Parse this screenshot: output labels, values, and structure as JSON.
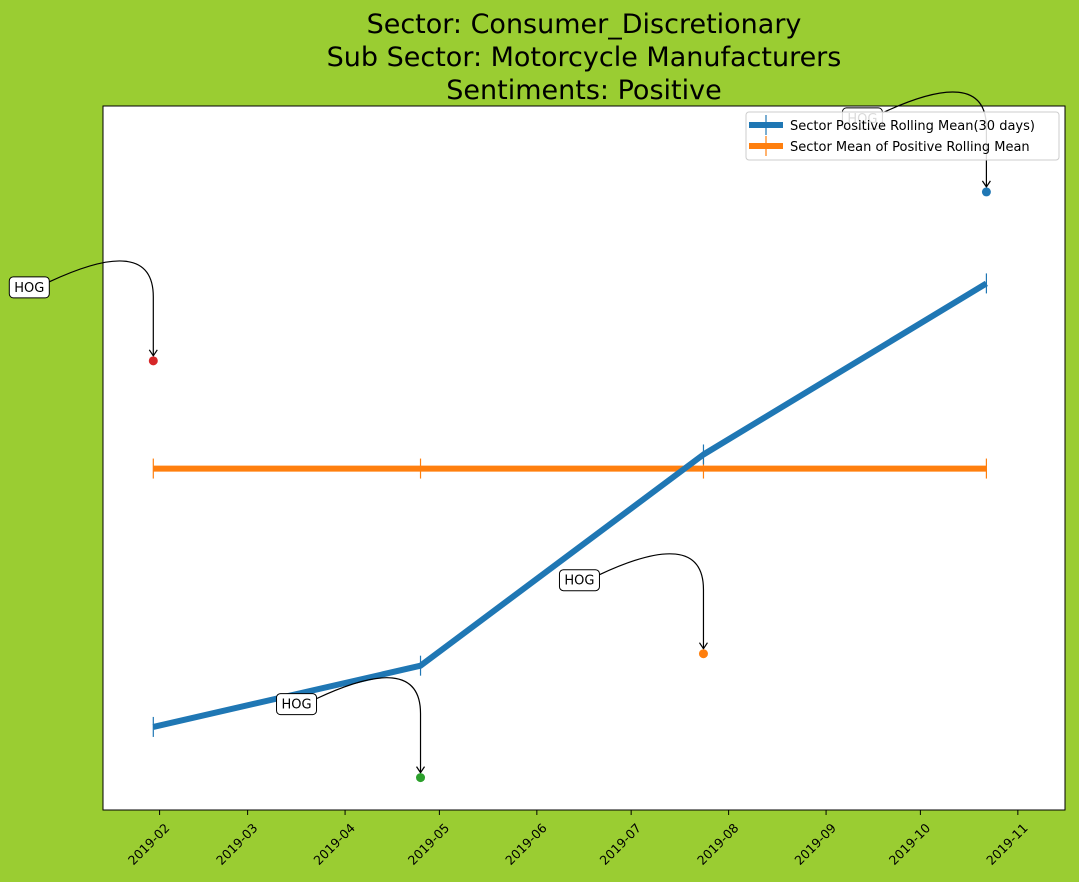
{
  "chart_data": {
    "type": "line",
    "title_lines": [
      "Sector:  Consumer_Discretionary",
      "Sub Sector:  Motorcycle Manufacturers",
      "Sentiments:  Positive"
    ],
    "x_tick_labels": [
      "2019-02",
      "2019-03",
      "2019-04",
      "2019-05",
      "2019-06",
      "2019-07",
      "2019-08",
      "2019-09",
      "2019-10",
      "2019-11"
    ],
    "x_ticks": [
      "2019-02-01",
      "2019-03-01",
      "2019-04-01",
      "2019-05-01",
      "2019-06-01",
      "2019-07-01",
      "2019-08-01",
      "2019-09-01",
      "2019-10-01",
      "2019-11-01"
    ],
    "xlim": [
      "2019-01-14",
      "2019-11-16"
    ],
    "y_ticks_shown": false,
    "ylim": [
      0,
      1
    ],
    "series": [
      {
        "name": "Sector Positive Rolling Mean(30 days)",
        "color": "#1f77b4",
        "x": [
          "2019-01-30",
          "2019-04-25",
          "2019-07-24",
          "2019-10-22"
        ],
        "y": [
          0.118,
          0.205,
          0.505,
          0.748
        ]
      },
      {
        "name": "Sector Mean of Positive Rolling Mean",
        "color": "#ff7f0e",
        "x": [
          "2019-01-30",
          "2019-04-25",
          "2019-07-24",
          "2019-10-22"
        ],
        "y": [
          0.485,
          0.485,
          0.485,
          0.485
        ]
      }
    ],
    "annotations": [
      {
        "text": "HOG",
        "x": "2019-01-30",
        "y": 0.638,
        "color": "#d62728"
      },
      {
        "text": "HOG",
        "x": "2019-04-25",
        "y": 0.046,
        "color": "#2ca02c"
      },
      {
        "text": "HOG",
        "x": "2019-07-24",
        "y": 0.222,
        "color": "#ff7f0e"
      },
      {
        "text": "HOG",
        "x": "2019-10-22",
        "y": 0.878,
        "color": "#1f77b4"
      }
    ],
    "legend_position": "top-right",
    "grid": false,
    "background_color": "#9ACD32",
    "plot_background": "#FFFFFF"
  }
}
